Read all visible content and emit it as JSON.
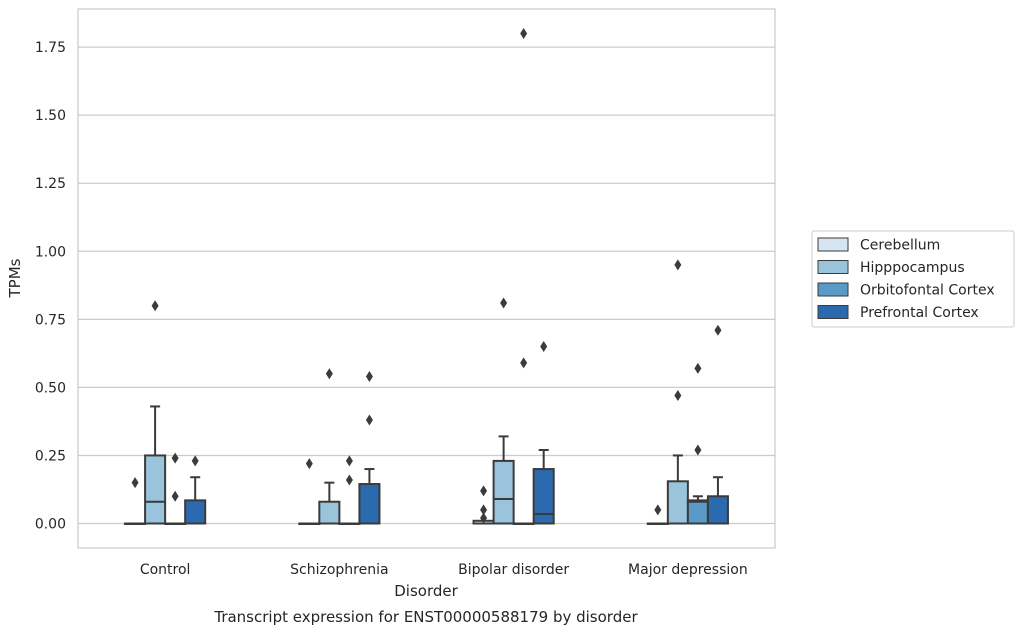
{
  "chart_data": {
    "type": "box",
    "title": "",
    "caption": "Transcript expression for ENST00000588179 by disorder",
    "xlabel": "Disorder",
    "ylabel": "TPMs",
    "ylim": [
      -0.09,
      1.89
    ],
    "yticks": [
      0.0,
      0.25,
      0.5,
      0.75,
      1.0,
      1.25,
      1.5,
      1.75
    ],
    "ytick_labels": [
      "0.00",
      "0.25",
      "0.50",
      "0.75",
      "1.00",
      "1.25",
      "1.50",
      "1.75"
    ],
    "grid": "y",
    "legend_position": "right",
    "categories": [
      "Control",
      "Schizophrenia",
      "Bipolar disorder",
      "Major depression"
    ],
    "series": [
      {
        "name": "Cerebellum",
        "color": "#d7e5f2",
        "boxes": [
          {
            "min": 0,
            "q1": 0,
            "median": 0,
            "q3": 0,
            "max": 0,
            "outliers": [
              0.15
            ]
          },
          {
            "min": 0,
            "q1": 0,
            "median": 0,
            "q3": 0,
            "max": 0,
            "outliers": [
              0.22
            ]
          },
          {
            "min": 0,
            "q1": 0,
            "median": 0,
            "q3": 0.01,
            "max": 0.01,
            "outliers": [
              0.12,
              0.05,
              0.02
            ]
          },
          {
            "min": 0,
            "q1": 0,
            "median": 0,
            "q3": 0,
            "max": 0,
            "outliers": [
              0.05
            ]
          }
        ]
      },
      {
        "name": "Hipppocampus",
        "color": "#9ac4dc",
        "boxes": [
          {
            "min": 0,
            "q1": 0,
            "median": 0.08,
            "q3": 0.25,
            "max": 0.43,
            "outliers": [
              0.8
            ]
          },
          {
            "min": 0,
            "q1": 0,
            "median": 0,
            "q3": 0.08,
            "max": 0.15,
            "outliers": [
              0.55
            ]
          },
          {
            "min": 0,
            "q1": 0,
            "median": 0.09,
            "q3": 0.23,
            "max": 0.32,
            "outliers": [
              0.81
            ]
          },
          {
            "min": 0,
            "q1": 0,
            "median": 0,
            "q3": 0.155,
            "max": 0.25,
            "outliers": [
              0.95,
              0.47
            ]
          }
        ]
      },
      {
        "name": "Orbitofontal Cortex",
        "color": "#5a9ac8",
        "boxes": [
          {
            "min": 0,
            "q1": 0,
            "median": 0,
            "q3": 0,
            "max": 0,
            "outliers": [
              0.24,
              0.1
            ]
          },
          {
            "min": 0,
            "q1": 0,
            "median": 0,
            "q3": 0,
            "max": 0,
            "outliers": [
              0.23,
              0.16
            ]
          },
          {
            "min": 0,
            "q1": 0,
            "median": 0,
            "q3": 0,
            "max": 0,
            "outliers": [
              1.8,
              0.59
            ]
          },
          {
            "min": 0,
            "q1": 0,
            "median": 0.08,
            "q3": 0.085,
            "max": 0.1,
            "outliers": [
              0.57,
              0.27
            ]
          }
        ]
      },
      {
        "name": "Prefrontal Cortex",
        "color": "#2b6aaf",
        "boxes": [
          {
            "min": 0,
            "q1": 0,
            "median": 0,
            "q3": 0.085,
            "max": 0.17,
            "outliers": [
              0.23
            ]
          },
          {
            "min": 0,
            "q1": 0,
            "median": 0,
            "q3": 0.145,
            "max": 0.2,
            "outliers": [
              0.54,
              0.38
            ]
          },
          {
            "min": 0,
            "q1": 0,
            "median": 0.035,
            "q3": 0.2,
            "max": 0.27,
            "outliers": [
              0.65
            ]
          },
          {
            "min": 0,
            "q1": 0,
            "median": 0,
            "q3": 0.1,
            "max": 0.17,
            "outliers": [
              0.71
            ]
          }
        ]
      }
    ]
  }
}
